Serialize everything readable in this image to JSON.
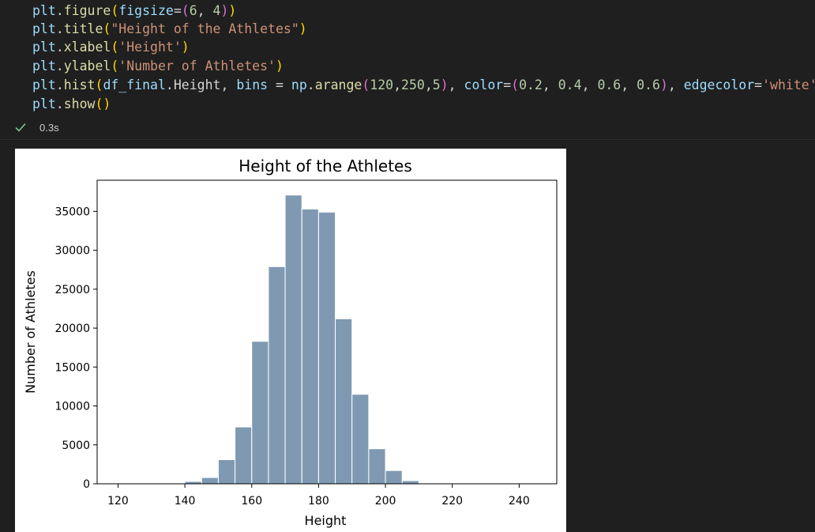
{
  "code": {
    "line1": {
      "obj": "plt",
      "dot": ".",
      "fn": "figure",
      "p": "(",
      "kw": "figsize",
      "eq": "=",
      "p2": "(",
      "n1": "6",
      "c": ", ",
      "n2": "4",
      "close2": ")",
      "close": ")"
    },
    "line2": {
      "obj": "plt",
      "dot": ".",
      "fn": "title",
      "p": "(",
      "s": "\"Height of the Athletes\"",
      "close": ")"
    },
    "line3": {
      "obj": "plt",
      "dot": ".",
      "fn": "xlabel",
      "p": "(",
      "s": "'Height'",
      "close": ")"
    },
    "line4": {
      "obj": "plt",
      "dot": ".",
      "fn": "ylabel",
      "p": "(",
      "s": "'Number of Athletes'",
      "close": ")"
    },
    "line5": {
      "obj": "plt",
      "dot": ".",
      "fn": "hist",
      "p": "(",
      "arg1a": "df_final",
      "arg1b": ".Height",
      "c1": ", ",
      "kw1": "bins",
      "eq1": " = ",
      "np": "np",
      "dot2": ".",
      "fn2": "arange",
      "p2": "(",
      "a1": "120",
      "ac1": ",",
      "a2": "250",
      "ac2": ",",
      "a3": "5",
      "p2c": ")",
      "c2": ", ",
      "kw2": "color",
      "eq2": "=",
      "p3": "(",
      "v1": "0.2",
      "vc1": ", ",
      "v2": "0.4",
      "vc2": ", ",
      "v3": "0.6",
      "vc3": ", ",
      "v4": "0.6",
      "p3c": ")",
      "c3": ", ",
      "kw3": "edgecolor",
      "eq3": "=",
      "s": "'white'",
      "close": ")"
    },
    "line6": {
      "obj": "plt",
      "dot": ".",
      "fn": "show",
      "p": "()"
    }
  },
  "status": {
    "check_icon": "check-icon",
    "time": "0.3s",
    "color": "#73c991"
  },
  "chart_data": {
    "type": "bar",
    "title": "Height of the Athletes",
    "xlabel": "Height",
    "ylabel": "Number of Athletes",
    "bin_edges_start": 120,
    "bin_width": 5,
    "bins": [
      {
        "x0": 120,
        "x1": 125,
        "value": 0
      },
      {
        "x0": 125,
        "x1": 130,
        "value": 0
      },
      {
        "x0": 130,
        "x1": 135,
        "value": 0
      },
      {
        "x0": 135,
        "x1": 140,
        "value": 0
      },
      {
        "x0": 140,
        "x1": 145,
        "value": 300
      },
      {
        "x0": 145,
        "x1": 150,
        "value": 800
      },
      {
        "x0": 150,
        "x1": 155,
        "value": 3100
      },
      {
        "x0": 155,
        "x1": 160,
        "value": 7300
      },
      {
        "x0": 160,
        "x1": 165,
        "value": 18300
      },
      {
        "x0": 165,
        "x1": 170,
        "value": 27900
      },
      {
        "x0": 170,
        "x1": 175,
        "value": 37100
      },
      {
        "x0": 175,
        "x1": 180,
        "value": 35300
      },
      {
        "x0": 180,
        "x1": 185,
        "value": 34900
      },
      {
        "x0": 185,
        "x1": 190,
        "value": 21200
      },
      {
        "x0": 190,
        "x1": 195,
        "value": 11500
      },
      {
        "x0": 195,
        "x1": 200,
        "value": 4500
      },
      {
        "x0": 200,
        "x1": 205,
        "value": 1700
      },
      {
        "x0": 205,
        "x1": 210,
        "value": 400
      },
      {
        "x0": 210,
        "x1": 215,
        "value": 100
      },
      {
        "x0": 215,
        "x1": 220,
        "value": 0
      },
      {
        "x0": 220,
        "x1": 225,
        "value": 0
      },
      {
        "x0": 225,
        "x1": 230,
        "value": 0
      },
      {
        "x0": 230,
        "x1": 235,
        "value": 0
      },
      {
        "x0": 235,
        "x1": 240,
        "value": 0
      },
      {
        "x0": 240,
        "x1": 245,
        "value": 0
      }
    ],
    "xlim": [
      113.75,
      251.25
    ],
    "ylim": [
      0,
      39000
    ],
    "xticks": [
      "120",
      "140",
      "160",
      "180",
      "200",
      "220",
      "240"
    ],
    "yticks": [
      "0",
      "5000",
      "10000",
      "15000",
      "20000",
      "25000",
      "30000",
      "35000"
    ],
    "bar_color": "#7f99b2",
    "edge_color": "#ffffff",
    "grid": false
  }
}
